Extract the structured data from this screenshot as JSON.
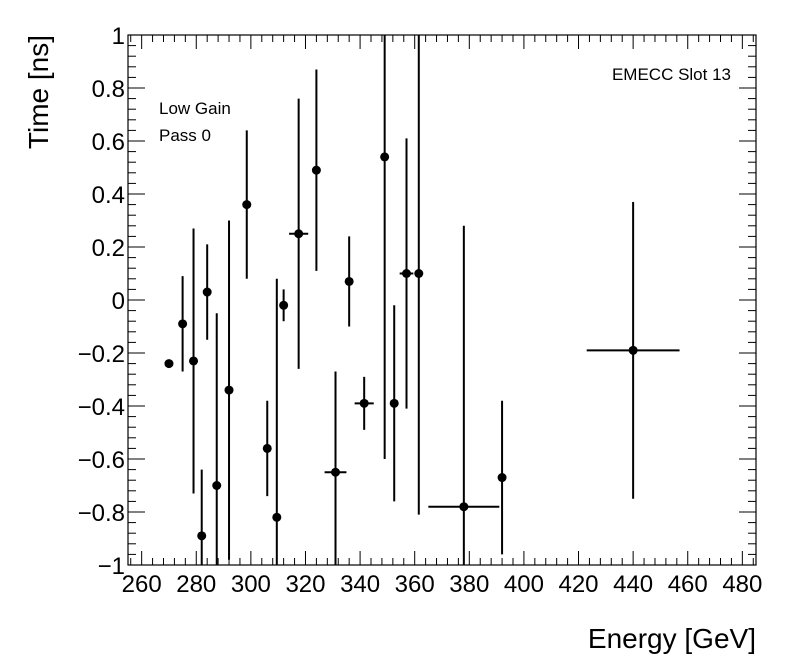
{
  "chart_data": {
    "type": "scatter",
    "xlabel": "Energy [GeV]",
    "ylabel": "Time [ns]",
    "xlim": [
      255,
      485
    ],
    "ylim": [
      -1,
      1
    ],
    "x_ticks": [
      260,
      280,
      300,
      320,
      340,
      360,
      380,
      400,
      420,
      440,
      460,
      480
    ],
    "y_ticks": [
      -1,
      -0.8,
      -0.6,
      -0.4,
      -0.2,
      0,
      0.2,
      0.4,
      0.6,
      0.8,
      1
    ],
    "x_tick_labels": [
      "260",
      "280",
      "300",
      "320",
      "340",
      "360",
      "380",
      "400",
      "420",
      "440",
      "460",
      "480"
    ],
    "y_tick_labels": [
      "−1",
      "−0.8",
      "−0.6",
      "−0.4",
      "−0.2",
      "0",
      "0.2",
      "0.4",
      "0.6",
      "0.8",
      "1"
    ],
    "annotations": [
      "Low Gain",
      "Pass 0",
      "EMECC Slot 13"
    ],
    "grid": false,
    "marker_color": "#000000",
    "points": [
      {
        "x": 270.0,
        "y": -0.24,
        "xerr": 1.5,
        "yerr": 0.01
      },
      {
        "x": 275.0,
        "y": -0.09,
        "xerr": 0.5,
        "yerr": 0.18
      },
      {
        "x": 279.0,
        "y": -0.23,
        "xerr": 1.5,
        "yerr": 0.5
      },
      {
        "x": 282.0,
        "y": -0.89,
        "xerr": 0.5,
        "yerr": 0.25
      },
      {
        "x": 284.0,
        "y": 0.03,
        "xerr": 0.5,
        "yerr": 0.18
      },
      {
        "x": 287.5,
        "y": -0.7,
        "xerr": 1.5,
        "yerr": 0.65
      },
      {
        "x": 292.0,
        "y": -0.34,
        "xerr": 0.5,
        "yerr": 0.64
      },
      {
        "x": 298.5,
        "y": 0.36,
        "xerr": 0.5,
        "yerr": 0.28
      },
      {
        "x": 306.0,
        "y": -0.56,
        "xerr": 1.0,
        "yerr": 0.18
      },
      {
        "x": 309.5,
        "y": -0.82,
        "xerr": 0.5,
        "yerr": 0.9
      },
      {
        "x": 312.0,
        "y": -0.02,
        "xerr": 1.5,
        "yerr": 0.06
      },
      {
        "x": 317.5,
        "y": 0.25,
        "xerr": 3.5,
        "yerr": 0.51
      },
      {
        "x": 324.0,
        "y": 0.49,
        "xerr": 1.5,
        "yerr": 0.38
      },
      {
        "x": 331.0,
        "y": -0.65,
        "xerr": 4.0,
        "yerr": 0.38
      },
      {
        "x": 336.0,
        "y": 0.07,
        "xerr": 0.5,
        "yerr": 0.17
      },
      {
        "x": 341.5,
        "y": -0.39,
        "xerr": 3.5,
        "yerr": 0.1
      },
      {
        "x": 349.0,
        "y": 0.54,
        "xerr": 0.5,
        "yerr": 1.14
      },
      {
        "x": 352.5,
        "y": -0.39,
        "xerr": 1.0,
        "yerr": 0.37
      },
      {
        "x": 357.0,
        "y": 0.1,
        "xerr": 2.5,
        "yerr": 0.51
      },
      {
        "x": 361.5,
        "y": 0.1,
        "xerr": 0.5,
        "yerr": 0.91
      },
      {
        "x": 378.0,
        "y": -0.78,
        "xerr": 13.0,
        "yerr": 1.06
      },
      {
        "x": 392.0,
        "y": -0.67,
        "xerr": 0.5,
        "yerr": 0.29
      },
      {
        "x": 440.0,
        "y": -0.19,
        "xerr": 17.0,
        "yerr": 0.56
      }
    ]
  }
}
